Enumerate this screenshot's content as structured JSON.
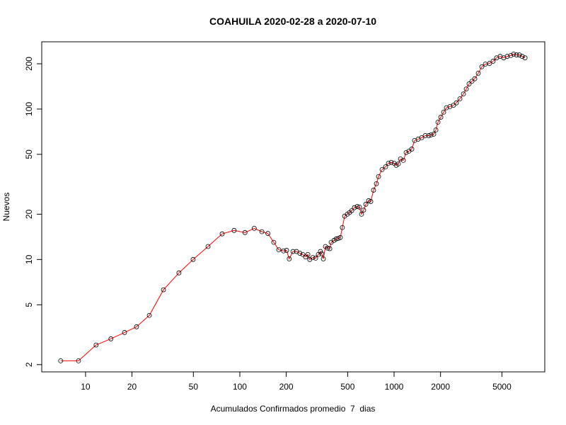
{
  "chart_data": {
    "type": "line",
    "title": "COAHUILA 2020-02-28 a 2020-07-10",
    "xlabel": "Acumulados Confirmados promedio  7  dias",
    "ylabel": "Nuevos",
    "xscale": "log",
    "yscale": "log",
    "xlim": [
      5.2,
      9480
    ],
    "ylim": [
      1.79,
      280
    ],
    "xticks": [
      10,
      20,
      50,
      100,
      200,
      500,
      1000,
      2000,
      5000
    ],
    "yticks": [
      2,
      5,
      10,
      20,
      50,
      100,
      200
    ],
    "x": [
      6.9,
      9.0,
      11.7,
      14.6,
      17.9,
      21.4,
      25.9,
      32.0,
      40.3,
      49.8,
      62.2,
      76.8,
      91.8,
      108,
      124,
      139,
      152,
      166,
      179,
      192,
      201,
      209,
      221,
      233,
      245,
      256,
      267,
      276,
      284,
      297,
      310,
      323,
      333,
      340,
      348,
      359,
      371,
      383,
      391,
      408,
      421,
      434,
      448,
      462,
      478,
      498,
      514,
      531,
      553,
      577,
      596,
      615,
      635,
      656,
      684,
      706,
      736,
      768,
      793,
      836,
      881,
      919,
      959,
      1000,
      1032,
      1066,
      1100,
      1148,
      1197,
      1248,
      1302,
      1358,
      1432,
      1510,
      1592,
      1678,
      1733,
      1807,
      1866,
      1925,
      2009,
      2095,
      2184,
      2303,
      2428,
      2534,
      2671,
      2816,
      2937,
      3063,
      3196,
      3333,
      3514,
      3705,
      3906,
      4158,
      4383,
      4621,
      4872,
      5136,
      5415,
      5710,
      5957,
      6216,
      6486,
      6767,
      7062
    ],
    "series": [
      {
        "color": "#ff0000",
        "marker_color": "#000000",
        "values": [
          2.12,
          2.12,
          2.7,
          2.97,
          3.27,
          3.57,
          4.25,
          6.29,
          8.14,
          10,
          12.2,
          14.8,
          15.6,
          15.1,
          16.1,
          15.3,
          14.9,
          13.0,
          11.6,
          11.4,
          11.5,
          10.1,
          11.3,
          11.3,
          11.0,
          10.8,
          10.4,
          10.8,
          10.0,
          10.3,
          10.2,
          10.8,
          11.3,
          10.9,
          10.1,
          12.2,
          11.9,
          11.8,
          13.0,
          13.4,
          13.7,
          13.8,
          14.0,
          16.3,
          19.4,
          20.0,
          20.5,
          21.1,
          22.1,
          22.5,
          22.3,
          20.0,
          21.3,
          23.3,
          24.6,
          24.3,
          28.9,
          31.9,
          35.6,
          39.6,
          41.3,
          43.6,
          44.2,
          43.6,
          42.3,
          43.2,
          46.6,
          45.6,
          51.4,
          52.5,
          54.2,
          61.8,
          63.1,
          64.5,
          66.6,
          66.6,
          67.3,
          68.1,
          72.6,
          81.8,
          88.3,
          95.3,
          102,
          104,
          106,
          110,
          117,
          126,
          136,
          147,
          153,
          159,
          173,
          191,
          199,
          201,
          208,
          219,
          224,
          219,
          224,
          227,
          232,
          229,
          229,
          224,
          219
        ]
      }
    ]
  }
}
